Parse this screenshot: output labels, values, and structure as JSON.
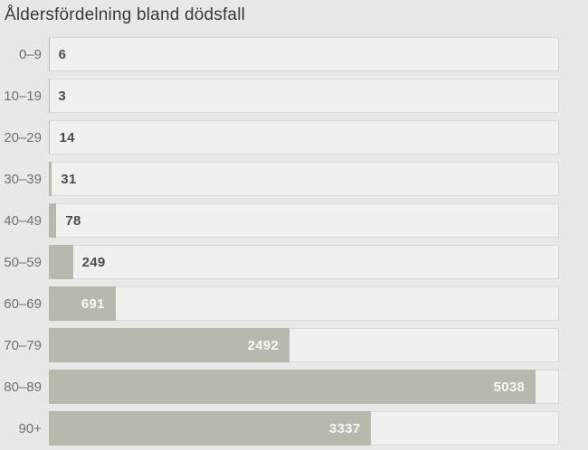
{
  "chart": {
    "title": "Åldersfördelning bland dödsfall"
  },
  "chart_data": {
    "type": "bar",
    "orientation": "horizontal",
    "title": "Åldersfördelning bland dödsfall",
    "categories": [
      "0–9",
      "10–19",
      "20–29",
      "30–39",
      "40–49",
      "50–59",
      "60–69",
      "70–79",
      "80–89",
      "90+"
    ],
    "values": [
      6,
      3,
      14,
      31,
      78,
      249,
      691,
      2492,
      5038,
      3337
    ],
    "xlim": [
      0,
      5280
    ],
    "grid": false,
    "legend": false,
    "value_labels": "on-bars",
    "value_label_inside_threshold": 500,
    "colors": {
      "background": "#e8e8e7",
      "track": "#f0f0ee",
      "track_border": "#d9d9d5",
      "bar": "#b8b9ac",
      "label": "#71716f",
      "value_outside": "#4c4c4a",
      "value_inside": "#f7f7f5",
      "title": "#3a3a38"
    }
  }
}
